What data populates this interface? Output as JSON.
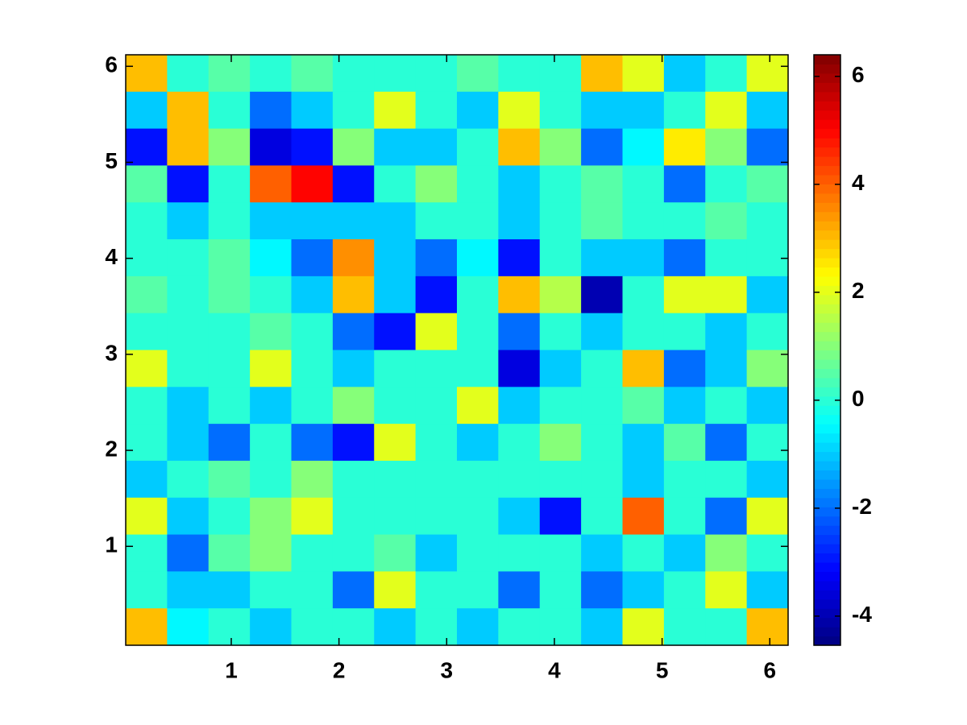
{
  "chart_data": {
    "type": "heatmap",
    "colormap": "jet",
    "xlim": [
      0.02,
      6.17
    ],
    "ylim": [
      -0.03,
      6.12
    ],
    "xticks": [
      1,
      2,
      3,
      4,
      5,
      6
    ],
    "yticks": [
      1,
      2,
      3,
      4,
      5,
      6
    ],
    "z": [
      [
        3,
        0,
        0.5,
        0,
        0.5,
        0,
        0,
        0,
        0.5,
        0,
        0,
        3,
        2,
        -1,
        0,
        2
      ],
      [
        -1,
        3,
        0,
        -2,
        -1,
        0,
        2,
        0,
        -1,
        2,
        0,
        -1,
        -1,
        0,
        2,
        -1
      ],
      [
        -3,
        3,
        1,
        -3.5,
        -3,
        1,
        -1,
        -1,
        0,
        3,
        1,
        -2,
        -0.5,
        2.5,
        1,
        -2
      ],
      [
        0.5,
        -3,
        0,
        4,
        5,
        -3,
        0,
        1,
        0,
        -1,
        0,
        0.5,
        0,
        -2,
        0,
        0.5
      ],
      [
        0,
        -1,
        0,
        -1,
        -1,
        -1,
        -1,
        0,
        0,
        -1,
        0,
        0.5,
        0,
        0,
        0.5,
        0
      ],
      [
        0,
        0,
        0.5,
        -0.5,
        -2,
        3.5,
        -1,
        -2,
        -0.5,
        -3,
        0,
        -1,
        -1,
        -2,
        0,
        0
      ],
      [
        0.5,
        0,
        0.5,
        0,
        -1,
        3,
        -1,
        -3,
        0,
        3,
        1.5,
        -4,
        0,
        2,
        2,
        -1
      ],
      [
        0,
        0,
        0,
        0.5,
        0,
        -2,
        -3,
        2,
        0,
        -2,
        0,
        -1,
        0,
        0,
        -1,
        0
      ],
      [
        2,
        0,
        0,
        2,
        0,
        -1,
        0,
        0,
        0,
        -3.5,
        -1,
        0,
        3,
        -2,
        -1,
        1
      ],
      [
        0,
        -1,
        0,
        -1,
        0,
        1,
        0,
        0,
        2,
        -1,
        0,
        0,
        0.5,
        -1,
        0,
        -1
      ],
      [
        0,
        -1,
        -2,
        0,
        -2,
        -3,
        2,
        0,
        -1,
        0,
        1,
        0,
        -1,
        0.5,
        -2,
        0
      ],
      [
        -1,
        0,
        0.5,
        0,
        1,
        0,
        0,
        0,
        0,
        0,
        0,
        0,
        -1,
        0,
        0,
        -1
      ],
      [
        2,
        -1,
        0,
        1,
        2,
        0,
        0,
        0,
        0,
        -1,
        -3,
        0,
        4,
        0,
        -2,
        2
      ],
      [
        0,
        -2,
        0.5,
        1,
        0,
        0,
        0.5,
        -1,
        0,
        0,
        0,
        -1,
        0,
        -1,
        1,
        0
      ],
      [
        0,
        -1,
        -1,
        0,
        0,
        -2,
        2,
        0,
        0,
        -2,
        0,
        -2,
        -1,
        0,
        2,
        -1
      ],
      [
        3,
        -0.5,
        0,
        -1,
        0,
        0,
        -1,
        0,
        -1,
        0,
        0,
        -1,
        2,
        0,
        0,
        3
      ]
    ],
    "colorbar": {
      "lim": [
        -4.54,
        6.4
      ],
      "ticks": [
        -4,
        -2,
        0,
        2,
        4,
        6
      ]
    }
  }
}
